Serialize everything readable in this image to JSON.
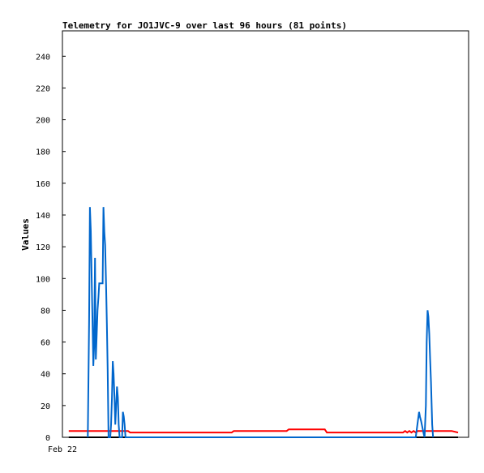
{
  "chart_data": {
    "type": "line",
    "title": "Telemetry for JO1JVC-9 over last 96 hours (81 points)",
    "xlabel": "",
    "ylabel": "Values",
    "ylim": [
      0,
      256
    ],
    "yticks": [
      0,
      20,
      40,
      60,
      80,
      100,
      120,
      140,
      160,
      180,
      200,
      220,
      240
    ],
    "xlim": [
      0,
      96
    ],
    "xtick_labels": [
      {
        "x": 0,
        "label": "Feb 22"
      }
    ],
    "grid": false,
    "legend": "none",
    "series": [
      {
        "color": "#000000",
        "points": [
          [
            1.5,
            0
          ],
          [
            93.5,
            0
          ]
        ]
      },
      {
        "color": "#ff0000",
        "points": [
          [
            1.5,
            4
          ],
          [
            15.5,
            4
          ],
          [
            16,
            3
          ],
          [
            40,
            3
          ],
          [
            40.5,
            4
          ],
          [
            53,
            4
          ],
          [
            53.5,
            5
          ],
          [
            62,
            5
          ],
          [
            62.5,
            3
          ],
          [
            80.5,
            3
          ],
          [
            81,
            4
          ],
          [
            81.5,
            3
          ],
          [
            82,
            4
          ],
          [
            82.5,
            3
          ],
          [
            83,
            4
          ],
          [
            83.5,
            3
          ],
          [
            84,
            4
          ],
          [
            88,
            4
          ],
          [
            92,
            4
          ],
          [
            93.5,
            3
          ]
        ]
      },
      {
        "color": "#0066cc",
        "points": [
          [
            6,
            0
          ],
          [
            6.3,
            73
          ],
          [
            6.5,
            145
          ],
          [
            6.7,
            130
          ],
          [
            6.9,
            102
          ],
          [
            7.1,
            73
          ],
          [
            7.3,
            45
          ],
          [
            7.5,
            57
          ],
          [
            7.7,
            113
          ],
          [
            7.9,
            49
          ],
          [
            8.1,
            65
          ],
          [
            8.3,
            80
          ],
          [
            8.5,
            88
          ],
          [
            8.7,
            97
          ],
          [
            9.5,
            97
          ],
          [
            9.7,
            145
          ],
          [
            9.9,
            129
          ],
          [
            10.1,
            121
          ],
          [
            10.3,
            97
          ],
          [
            10.5,
            72
          ],
          [
            10.7,
            43
          ],
          [
            10.9,
            0
          ],
          [
            11.3,
            0
          ],
          [
            11.5,
            8
          ],
          [
            11.7,
            25
          ],
          [
            11.9,
            48
          ],
          [
            12.1,
            40
          ],
          [
            12.3,
            25
          ],
          [
            12.5,
            8
          ],
          [
            12.7,
            20
          ],
          [
            12.9,
            32
          ],
          [
            13.1,
            25
          ],
          [
            13.3,
            8
          ],
          [
            13.5,
            0
          ],
          [
            14.1,
            0
          ],
          [
            14.3,
            16
          ],
          [
            14.5,
            13
          ],
          [
            14.7,
            8
          ],
          [
            14.9,
            0
          ],
          [
            83.5,
            0
          ],
          [
            84.3,
            16
          ],
          [
            84.5,
            13
          ],
          [
            84.8,
            10
          ],
          [
            85.1,
            6
          ],
          [
            85.4,
            2
          ],
          [
            85.6,
            0
          ],
          [
            85.9,
            20
          ],
          [
            86.1,
            60
          ],
          [
            86.3,
            80
          ],
          [
            86.5,
            76
          ],
          [
            86.7,
            65
          ],
          [
            86.9,
            50
          ],
          [
            87.1,
            35
          ],
          [
            87.4,
            8
          ],
          [
            87.6,
            0
          ]
        ]
      }
    ]
  }
}
